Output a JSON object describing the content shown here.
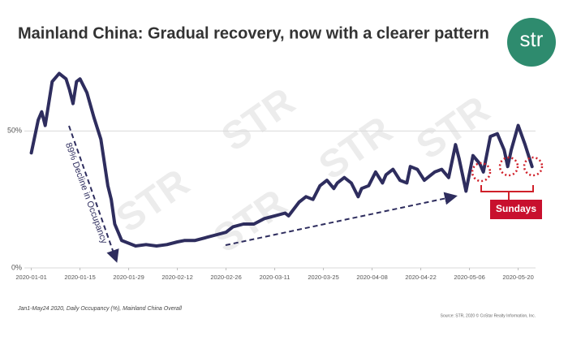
{
  "chart_data": {
    "type": "line",
    "title": "Mainland China: Gradual recovery, now with a clearer pattern",
    "logo": "str",
    "watermark": "STR",
    "annotations": {
      "decline": "89% Decline in Occupancy",
      "sundays": "Sundays"
    },
    "footnote": "Jan1-May24 2020, Daily Occupancy (%), Mainland China Overall",
    "source": "Source: STR, 2020 © CoStar Realty Information, Inc.",
    "x": [
      "2020-01-01",
      "2020-01-03",
      "2020-01-04",
      "2020-01-05",
      "2020-01-07",
      "2020-01-09",
      "2020-01-11",
      "2020-01-12",
      "2020-01-13",
      "2020-01-14",
      "2020-01-15",
      "2020-01-17",
      "2020-01-19",
      "2020-01-21",
      "2020-01-23",
      "2020-01-24",
      "2020-01-25",
      "2020-01-27",
      "2020-01-29",
      "2020-01-31",
      "2020-02-03",
      "2020-02-06",
      "2020-02-09",
      "2020-02-12",
      "2020-02-14",
      "2020-02-17",
      "2020-02-20",
      "2020-02-23",
      "2020-02-26",
      "2020-02-28",
      "2020-03-02",
      "2020-03-05",
      "2020-03-08",
      "2020-03-11",
      "2020-03-14",
      "2020-03-15",
      "2020-03-18",
      "2020-03-20",
      "2020-03-22",
      "2020-03-24",
      "2020-03-26",
      "2020-03-28",
      "2020-03-29",
      "2020-03-31",
      "2020-04-02",
      "2020-04-04",
      "2020-04-05",
      "2020-04-07",
      "2020-04-09",
      "2020-04-11",
      "2020-04-12",
      "2020-04-14",
      "2020-04-16",
      "2020-04-18",
      "2020-04-19",
      "2020-04-21",
      "2020-04-23",
      "2020-04-25",
      "2020-04-26",
      "2020-04-28",
      "2020-04-30",
      "2020-05-02",
      "2020-05-03",
      "2020-05-05",
      "2020-05-07",
      "2020-05-09",
      "2020-05-10",
      "2020-05-12",
      "2020-05-14",
      "2020-05-16",
      "2020-05-17",
      "2020-05-18",
      "2020-05-20",
      "2020-05-22",
      "2020-05-24"
    ],
    "series": [
      {
        "name": "Daily Occupancy",
        "color": "#2e2d5e",
        "values": [
          42,
          54,
          57,
          52,
          68,
          71,
          69,
          65,
          60,
          68,
          69,
          64,
          55,
          47,
          30,
          25,
          16,
          10,
          9,
          8,
          8.5,
          8,
          8.5,
          9.5,
          10,
          10,
          11,
          12,
          13,
          15,
          16,
          16,
          18,
          19,
          20,
          19,
          24,
          26,
          25,
          30,
          32,
          29,
          31,
          33,
          31,
          26,
          29,
          30,
          35,
          31,
          34,
          36,
          32,
          31,
          37,
          36,
          32,
          34,
          35,
          36,
          33,
          45,
          40,
          28,
          41,
          38,
          35,
          48,
          49,
          43,
          37,
          43,
          52,
          45,
          37
        ]
      }
    ],
    "xlim": [
      "2019-12-30",
      "2020-05-25"
    ],
    "xticks": [
      "2020-01-01",
      "2020-01-15",
      "2020-01-29",
      "2020-02-12",
      "2020-02-26",
      "2020-03-11",
      "2020-03-25",
      "2020-04-08",
      "2020-04-22",
      "2020-05-06",
      "2020-05-20"
    ],
    "ylim": [
      0,
      75
    ],
    "yticks": [
      {
        "value": 0,
        "label": "0%"
      },
      {
        "value": 50,
        "label": "50%"
      }
    ],
    "grid": true
  }
}
